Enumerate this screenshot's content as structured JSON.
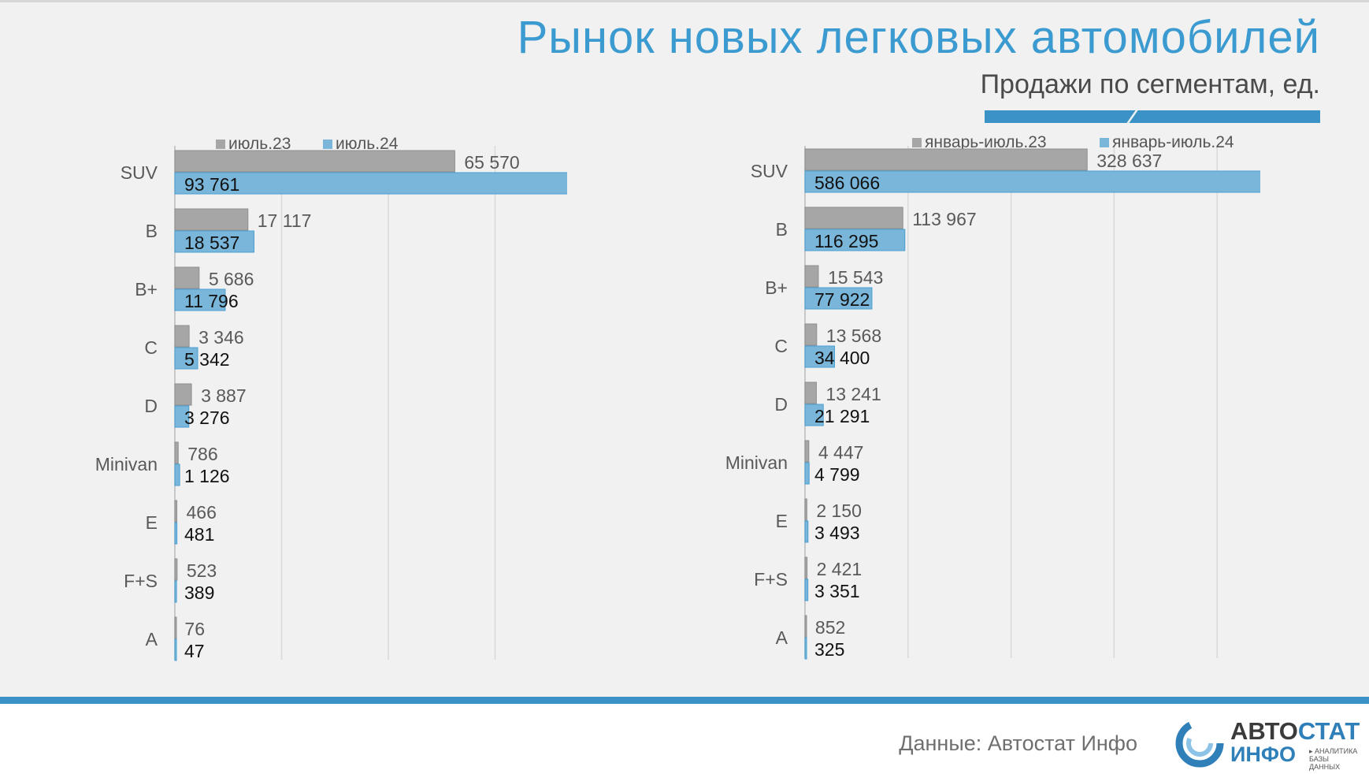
{
  "title": "Рынок новых легковых автомобилей",
  "subtitle": "Продажи по сегментам, ед.",
  "footer": {
    "source": "Данные: Автостат Инфо",
    "logo": {
      "top_dark": "АВТО",
      "top_light": "СТАТ",
      "bottom": "ИНФО",
      "sub1": "▸ АНАЛИТИКА",
      "sub2": "БАЗЫ ДАННЫХ"
    }
  },
  "colors": {
    "prev": "#a6a6a6",
    "curr": "#7ab6d9",
    "curr_border": "#4aa0d2",
    "title": "#3b9bd0",
    "grid": "#d9d9d9"
  },
  "chart_data": [
    {
      "type": "bar",
      "orientation": "horizontal",
      "categories": [
        "SUV",
        "B",
        "B+",
        "C",
        "D",
        "Minivan",
        "E",
        "F+S",
        "A"
      ],
      "series": [
        {
          "name": "июль.23",
          "values": [
            65570,
            17117,
            5686,
            3346,
            3887,
            786,
            466,
            523,
            76
          ],
          "labels": [
            "65 570",
            "17 117",
            "5 686",
            "3 346",
            "3 887",
            "786",
            "466",
            "523",
            "76"
          ]
        },
        {
          "name": "июль.24",
          "values": [
            93761,
            18537,
            11796,
            5342,
            3276,
            1126,
            481,
            389,
            47
          ],
          "labels": [
            "93 761",
            "18 537",
            "11 796",
            "5 342",
            "3 276",
            "1 126",
            "481",
            "389",
            "47"
          ]
        }
      ],
      "xlim": [
        0,
        100000
      ],
      "grid_step": 25000,
      "legend": "top"
    },
    {
      "type": "bar",
      "orientation": "horizontal",
      "categories": [
        "SUV",
        "B",
        "B+",
        "C",
        "D",
        "Minivan",
        "E",
        "F+S",
        "A"
      ],
      "series": [
        {
          "name": "январь-июль.23",
          "values": [
            328637,
            113967,
            15543,
            13568,
            13241,
            4447,
            2150,
            2421,
            852
          ],
          "labels": [
            "328 637",
            "113 967",
            "15 543",
            "13 568",
            "13 241",
            "4 447",
            "2 150",
            "2 421",
            "852"
          ]
        },
        {
          "name": "январь-июль.24",
          "values": [
            586066,
            116295,
            77922,
            34400,
            21291,
            4799,
            3493,
            3351,
            325
          ],
          "labels": [
            "586 066",
            "116 295",
            "77 922",
            "34 400",
            "21 291",
            "4 799",
            "3 493",
            "3 351",
            "325"
          ]
        }
      ],
      "xlim": [
        0,
        600000
      ],
      "grid_step": 120000,
      "legend": "top-right"
    }
  ]
}
